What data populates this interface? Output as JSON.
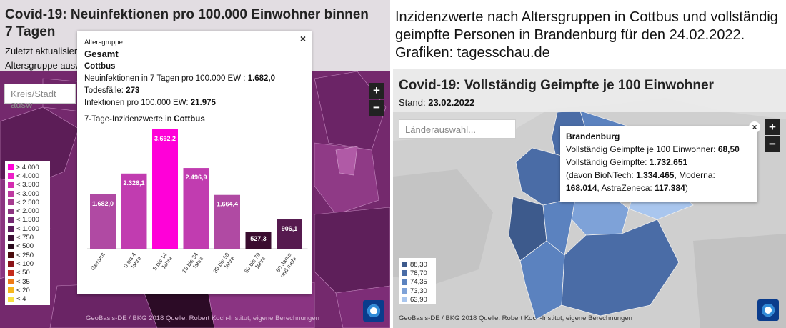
{
  "caption": "Inzidenzwerte nach Altersgruppen in Cottbus und vollständig geimpfte Personen in Brandenburg für den 24.02.2022. Grafiken: tagesschau.de",
  "left_map": {
    "title": "Covid-19: Neuinfektionen pro 100.000 Einwohner binnen 7 Tagen",
    "updated_label": "Zuletzt aktualisiert:",
    "age_group_label": "Altersgruppe auswä",
    "search_placeholder": "Kreis/Stadt ausw",
    "zoom_in": "+",
    "zoom_out": "−",
    "legend": [
      {
        "label": "≥ 4.000",
        "color": "#ff00d8"
      },
      {
        "label": "< 4.000",
        "color": "#ee1fc8"
      },
      {
        "label": "< 3.500",
        "color": "#d52cb0"
      },
      {
        "label": "< 3.000",
        "color": "#be3aa0"
      },
      {
        "label": "< 2.500",
        "color": "#a63b8f"
      },
      {
        "label": "< 2.000",
        "color": "#8c3280"
      },
      {
        "label": "< 1.500",
        "color": "#742873"
      },
      {
        "label": "< 1.000",
        "color": "#5a1c5a"
      },
      {
        "label": "< 750",
        "color": "#3c1035"
      },
      {
        "label": "< 500",
        "color": "#2a0a1c"
      },
      {
        "label": "< 250",
        "color": "#4a0a0c"
      },
      {
        "label": "< 100",
        "color": "#8a1218"
      },
      {
        "label": "< 50",
        "color": "#c42a1c"
      },
      {
        "label": "< 35",
        "color": "#ee7a16"
      },
      {
        "label": "< 20",
        "color": "#f6b61c"
      },
      {
        "label": "< 4",
        "color": "#f8e040"
      }
    ],
    "footer": "GeoBasis-DE / BKG 2018   Quelle: Robert Koch-Institut, eigene Berechnungen"
  },
  "left_popup": {
    "age_group_heading": "Altersgruppe",
    "age_group": "Gesamt",
    "district": "Cottbus",
    "incidence_label": "Neuinfektionen in 7 Tagen pro 100.000 EW :",
    "incidence_value": "1.682,0",
    "deaths_label": "Todesfälle:",
    "deaths_value": "273",
    "infections_label": "Infektionen pro 100.000 EW:",
    "infections_value": "21.975",
    "chart_heading": "7-Tage-Inzidenzwerte in",
    "chart_heading_place": "Cottbus",
    "close": "×"
  },
  "chart_data": {
    "type": "bar",
    "title": "7-Tage-Inzidenzwerte in Cottbus",
    "categories": [
      "Gesamt",
      "0 bis 4 Jahre",
      "5 bis 14 Jahre",
      "15 bis 34 Jahre",
      "35 bis 59 Jahre",
      "60 bis 79 Jahre",
      "80 Jahre und mehr"
    ],
    "category_lines": [
      [
        "Gesamt"
      ],
      [
        "0 bis 4",
        "Jahre"
      ],
      [
        "5 bis 14",
        "Jahre"
      ],
      [
        "15 bis 34",
        "Jahre"
      ],
      [
        "35 bis 59",
        "Jahre"
      ],
      [
        "60 bis 79",
        "Jahre"
      ],
      [
        "80 Jahre",
        "und mehr"
      ]
    ],
    "values": [
      1682.0,
      2326.1,
      3692.2,
      2496.9,
      1664.4,
      527.3,
      906.1
    ],
    "value_labels": [
      "1.682,0",
      "2.326,1",
      "3.692,2",
      "2.496,9",
      "1.664,4",
      "527,3",
      "906,1"
    ],
    "colors": [
      "#b04aa3",
      "#c13cb0",
      "#ff00d8",
      "#c13cb0",
      "#b04aa3",
      "#3a0c2f",
      "#561a4f"
    ],
    "ylim": [
      0,
      3692.2
    ],
    "xlabel": "",
    "ylabel": ""
  },
  "right_map": {
    "title": "Covid-19: Vollständig Geimpfte je 100 Einwohner",
    "stand_label": "Stand:",
    "stand_value": "23.02.2022",
    "search_placeholder": "Länderauswahl...",
    "zoom_in": "+",
    "zoom_out": "−",
    "legend": [
      {
        "label": "88,30",
        "color": "#3d5a8c"
      },
      {
        "label": "78,70",
        "color": "#4a6ca6"
      },
      {
        "label": "74,35",
        "color": "#5b82bf"
      },
      {
        "label": "73,30",
        "color": "#7ea2d8"
      },
      {
        "label": "63,90",
        "color": "#a9c6ee"
      }
    ],
    "footer": "GeoBasis-DE / BKG 2018     Quelle: Robert Koch-Institut, eigene Berechnungen"
  },
  "right_popup": {
    "state": "Brandenburg",
    "rate_label": "Vollständig Geimpfte je 100 Einwohner:",
    "rate_value": "68,50",
    "total_label": "Vollständig Geimpfte:",
    "total_value": "1.732.651",
    "detail_prefix": "(davon BioNTech:",
    "biontech": "1.334.465",
    "moderna_label": ", Moderna:",
    "moderna": "168.014",
    "astra_label": ", AstraZeneca:",
    "astra": "117.384",
    "detail_suffix": ")",
    "close": "×"
  }
}
